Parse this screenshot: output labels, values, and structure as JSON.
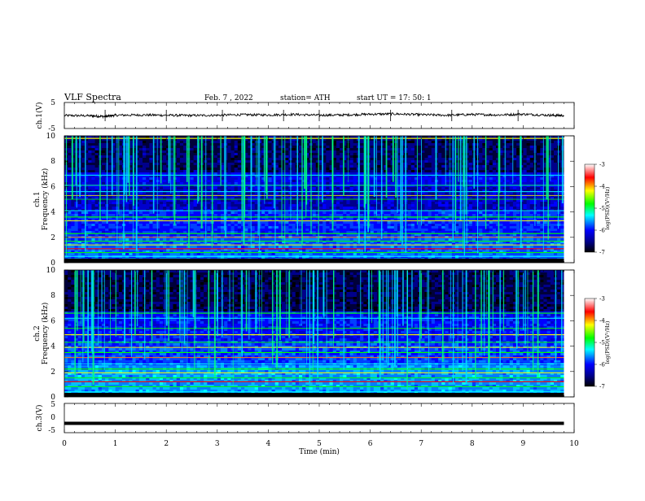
{
  "header": {
    "title": "VLF  Spectra",
    "date": "Feb. 7  , 2022",
    "station": "station= ATH",
    "start": "start  UT  =   17: 50: 1"
  },
  "colors": {
    "spectrum_low": "#000000",
    "spectrum_mid_low": "#0000ff",
    "spectrum_mid": "#00ffff",
    "spectrum_mid_high": "#00ff00",
    "spectrum_high": "#ff0000",
    "spectrum_max": "#ffffff",
    "trace": "#000000"
  },
  "chart_data": [
    {
      "type": "line",
      "panel": "ch1",
      "ylabel": "ch.1(V)",
      "ylim": [
        -5,
        5
      ],
      "yticks": [
        "5",
        "-5"
      ],
      "x": [
        0,
        0.5,
        0.8,
        1,
        1.5,
        2,
        2.5,
        3,
        3.5,
        4,
        4.5,
        5,
        5.5,
        6,
        6.5,
        7,
        7.5,
        8,
        8.5,
        9,
        9.5,
        9.8
      ],
      "values": [
        0.0,
        -0.1,
        -0.4,
        0.1,
        0.2,
        0.1,
        0.0,
        0.1,
        0.3,
        0.2,
        0.4,
        0.1,
        0.2,
        0.5,
        0.6,
        0.3,
        0.1,
        0.4,
        0.2,
        0.5,
        0.1,
        0.0
      ]
    },
    {
      "type": "heatmap",
      "panel": "ch1-spectrogram",
      "ylabel": "ch.1\nFrequency  (kHz)",
      "ylim": [
        0,
        10
      ],
      "yticks": [
        "0",
        "2",
        "4",
        "6",
        "8",
        "10"
      ],
      "colorbar": {
        "label": "log(PSD)(V²/Hz)",
        "range": [
          -7,
          -3
        ],
        "ticks": [
          "-3",
          "-4",
          "-5",
          "-6",
          "-7"
        ]
      }
    },
    {
      "type": "heatmap",
      "panel": "ch2-spectrogram",
      "ylabel": "ch.2\nFrequency  (kHz)",
      "ylim": [
        0,
        10
      ],
      "yticks": [
        "0",
        "2",
        "4",
        "6",
        "8",
        "10"
      ],
      "colorbar": {
        "label": "log(PSD)(V²/Hz)",
        "range": [
          -7,
          -3
        ],
        "ticks": [
          "-3",
          "-4",
          "-5",
          "-6",
          "-7"
        ]
      }
    },
    {
      "type": "line",
      "panel": "ch3",
      "ylabel": "ch.3(V)",
      "ylim": [
        -5,
        5
      ],
      "yticks": [
        "5",
        "0",
        "-5"
      ],
      "x": [
        0,
        9.8
      ],
      "values": [
        -1.8,
        -1.8
      ]
    }
  ],
  "xaxis": {
    "label": "Time  (min)",
    "range": [
      0,
      10
    ],
    "ticks": [
      "0",
      "1",
      "2",
      "3",
      "4",
      "5",
      "6",
      "7",
      "8",
      "9",
      "10"
    ]
  }
}
